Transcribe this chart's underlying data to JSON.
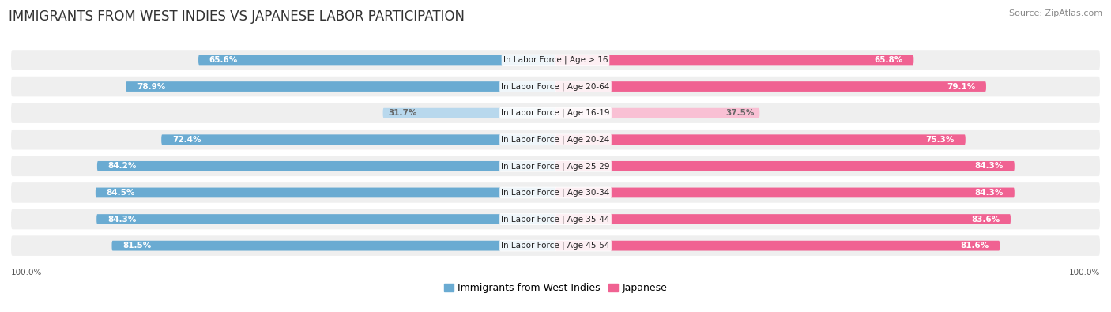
{
  "title": "IMMIGRANTS FROM WEST INDIES VS JAPANESE LABOR PARTICIPATION",
  "source": "Source: ZipAtlas.com",
  "categories": [
    "In Labor Force | Age > 16",
    "In Labor Force | Age 20-64",
    "In Labor Force | Age 16-19",
    "In Labor Force | Age 20-24",
    "In Labor Force | Age 25-29",
    "In Labor Force | Age 30-34",
    "In Labor Force | Age 35-44",
    "In Labor Force | Age 45-54"
  ],
  "west_indies_values": [
    65.6,
    78.9,
    31.7,
    72.4,
    84.2,
    84.5,
    84.3,
    81.5
  ],
  "japanese_values": [
    65.8,
    79.1,
    37.5,
    75.3,
    84.3,
    84.3,
    83.6,
    81.6
  ],
  "west_indies_color": "#6AABD2",
  "west_indies_color_light": "#B8D8ED",
  "japanese_color": "#F06292",
  "japanese_color_light": "#F9C0D4",
  "row_bg_color": "#EFEFEF",
  "max_value": 100.0,
  "title_fontsize": 12,
  "label_fontsize": 7.5,
  "value_fontsize": 7.5,
  "legend_fontsize": 9,
  "source_fontsize": 8,
  "background_color": "#FFFFFF"
}
